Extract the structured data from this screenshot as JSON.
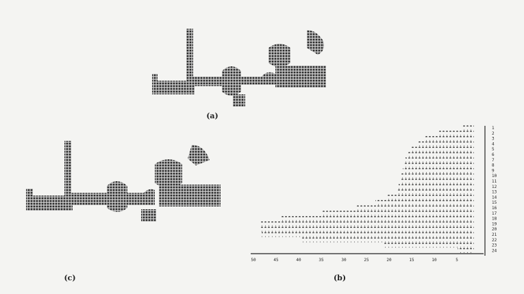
{
  "figure": {
    "panels": [
      {
        "label": "(a)"
      },
      {
        "label": "(b)"
      },
      {
        "label": "(c)"
      }
    ],
    "b_x_labels": [
      "50",
      "45",
      "40",
      "35",
      "30",
      "25",
      "20",
      "15",
      "10",
      "5"
    ],
    "b_row_labels": [
      "1",
      "2",
      "3",
      "4",
      "5",
      "6",
      "7",
      "8",
      "9",
      "10",
      "11",
      "12",
      "13",
      "14",
      "15",
      "16",
      "17",
      "18",
      "19",
      "20",
      "21",
      "22",
      "23",
      "24"
    ]
  }
}
